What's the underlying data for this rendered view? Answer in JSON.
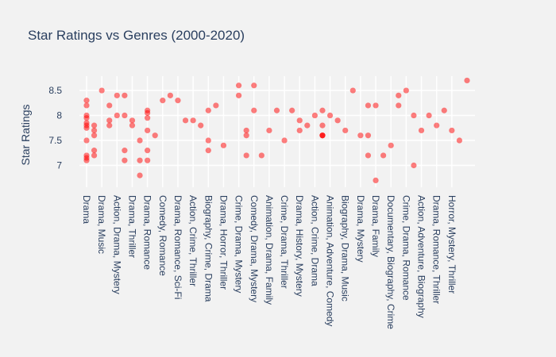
{
  "chart_data": {
    "type": "scatter",
    "title": "Star Ratings vs Genres  (2000-2020)",
    "xlabel": "",
    "ylabel": "Star Ratings",
    "ylim": [
      6.5,
      8.85
    ],
    "grid": true,
    "legend": "none",
    "marker_color": "#ff0000",
    "y_ticks": [
      7,
      7.5,
      8,
      8.5
    ],
    "categories": [
      "Drama",
      "Drama, Music",
      "Action, Drama, Mystery",
      "Drama, Thriller",
      "Drama, Romance",
      "Comedy, Romance",
      "Drama, Romance, Sci-Fi",
      "Action, Crime, Thriller",
      "Biography, Crime, Drama",
      "Drama, Horror, Thriller",
      "Crime, Drama, Mystery",
      "Comedy, Drama, Mystery",
      "Animation, Drama, Family",
      "Crime, Drama, Thriller",
      "Drama, History, Mystery",
      "Action, Crime, Drama",
      "Animation, Adventure, Comedy",
      "Biography, Drama, Music",
      "Drama, Mystery",
      "Drama, Family",
      "Documentary, Biography, Crime",
      "Crime, Drama, Romance",
      "Action, Adventure, Biography",
      "Drama, Romance, Thriller",
      "Horror, Mystery, Thriller"
    ],
    "points": [
      {
        "x": 0.0,
        "y": 8.3
      },
      {
        "x": 0.0,
        "y": 8.2
      },
      {
        "x": 0.0,
        "y": 8.0
      },
      {
        "x": 0.0,
        "y": 7.95
      },
      {
        "x": 0.0,
        "y": 7.85
      },
      {
        "x": 0.0,
        "y": 7.8
      },
      {
        "x": 0.0,
        "y": 7.75
      },
      {
        "x": 0.0,
        "y": 7.5
      },
      {
        "x": 0.0,
        "y": 7.2
      },
      {
        "x": 0.0,
        "y": 7.15
      },
      {
        "x": 0.0,
        "y": 7.1
      },
      {
        "x": 0.5,
        "y": 7.8
      },
      {
        "x": 0.5,
        "y": 7.7
      },
      {
        "x": 0.5,
        "y": 7.6
      },
      {
        "x": 0.5,
        "y": 7.3
      },
      {
        "x": 0.5,
        "y": 7.2
      },
      {
        "x": 1.0,
        "y": 8.5
      },
      {
        "x": 1.5,
        "y": 8.2
      },
      {
        "x": 1.5,
        "y": 7.9
      },
      {
        "x": 1.5,
        "y": 7.8
      },
      {
        "x": 2.0,
        "y": 8.4
      },
      {
        "x": 2.0,
        "y": 8.0
      },
      {
        "x": 2.5,
        "y": 8.4
      },
      {
        "x": 2.5,
        "y": 8.0
      },
      {
        "x": 2.5,
        "y": 7.3
      },
      {
        "x": 2.5,
        "y": 7.1
      },
      {
        "x": 3.0,
        "y": 7.9
      },
      {
        "x": 3.0,
        "y": 7.8
      },
      {
        "x": 3.5,
        "y": 7.5
      },
      {
        "x": 3.5,
        "y": 7.1
      },
      {
        "x": 3.5,
        "y": 6.8
      },
      {
        "x": 4.0,
        "y": 8.1
      },
      {
        "x": 4.0,
        "y": 8.05
      },
      {
        "x": 4.0,
        "y": 7.95
      },
      {
        "x": 4.0,
        "y": 7.7
      },
      {
        "x": 4.0,
        "y": 7.3
      },
      {
        "x": 4.0,
        "y": 7.1
      },
      {
        "x": 4.5,
        "y": 7.6
      },
      {
        "x": 5.0,
        "y": 8.3
      },
      {
        "x": 5.5,
        "y": 8.4
      },
      {
        "x": 6.0,
        "y": 8.3
      },
      {
        "x": 6.5,
        "y": 7.9
      },
      {
        "x": 7.0,
        "y": 7.9
      },
      {
        "x": 7.5,
        "y": 7.8
      },
      {
        "x": 8.0,
        "y": 8.1
      },
      {
        "x": 8.0,
        "y": 7.5
      },
      {
        "x": 8.0,
        "y": 7.3
      },
      {
        "x": 8.5,
        "y": 8.2
      },
      {
        "x": 9.0,
        "y": 7.4
      },
      {
        "x": 10.0,
        "y": 8.6
      },
      {
        "x": 10.0,
        "y": 8.4
      },
      {
        "x": 10.5,
        "y": 7.7
      },
      {
        "x": 10.5,
        "y": 7.6
      },
      {
        "x": 10.5,
        "y": 7.2
      },
      {
        "x": 11.0,
        "y": 8.6
      },
      {
        "x": 11.0,
        "y": 8.1
      },
      {
        "x": 11.5,
        "y": 7.2
      },
      {
        "x": 12.0,
        "y": 7.7
      },
      {
        "x": 12.5,
        "y": 8.1
      },
      {
        "x": 13.0,
        "y": 7.5
      },
      {
        "x": 13.5,
        "y": 8.1
      },
      {
        "x": 14.0,
        "y": 7.9
      },
      {
        "x": 14.0,
        "y": 7.7
      },
      {
        "x": 14.5,
        "y": 7.8
      },
      {
        "x": 15.0,
        "y": 8.0
      },
      {
        "x": 15.5,
        "y": 8.1
      },
      {
        "x": 15.5,
        "y": 7.8
      },
      {
        "x": 15.5,
        "y": 7.6
      },
      {
        "x": 15.5,
        "y": 7.6
      },
      {
        "x": 15.5,
        "y": 7.6
      },
      {
        "x": 16.0,
        "y": 8.0
      },
      {
        "x": 16.5,
        "y": 7.9
      },
      {
        "x": 17.0,
        "y": 7.7
      },
      {
        "x": 17.5,
        "y": 8.5
      },
      {
        "x": 18.0,
        "y": 7.6
      },
      {
        "x": 18.5,
        "y": 8.2
      },
      {
        "x": 18.5,
        "y": 7.6
      },
      {
        "x": 18.5,
        "y": 7.2
      },
      {
        "x": 19.0,
        "y": 8.2
      },
      {
        "x": 19.0,
        "y": 6.7
      },
      {
        "x": 19.5,
        "y": 7.2
      },
      {
        "x": 20.0,
        "y": 7.4
      },
      {
        "x": 20.5,
        "y": 8.4
      },
      {
        "x": 20.5,
        "y": 8.2
      },
      {
        "x": 21.0,
        "y": 8.5
      },
      {
        "x": 21.5,
        "y": 8.0
      },
      {
        "x": 21.5,
        "y": 7.0
      },
      {
        "x": 22.0,
        "y": 7.7
      },
      {
        "x": 22.5,
        "y": 8.0
      },
      {
        "x": 23.0,
        "y": 7.8
      },
      {
        "x": 23.5,
        "y": 8.1
      },
      {
        "x": 24.0,
        "y": 7.7
      },
      {
        "x": 24.5,
        "y": 7.5
      },
      {
        "x": 25.0,
        "y": 8.7
      }
    ]
  }
}
